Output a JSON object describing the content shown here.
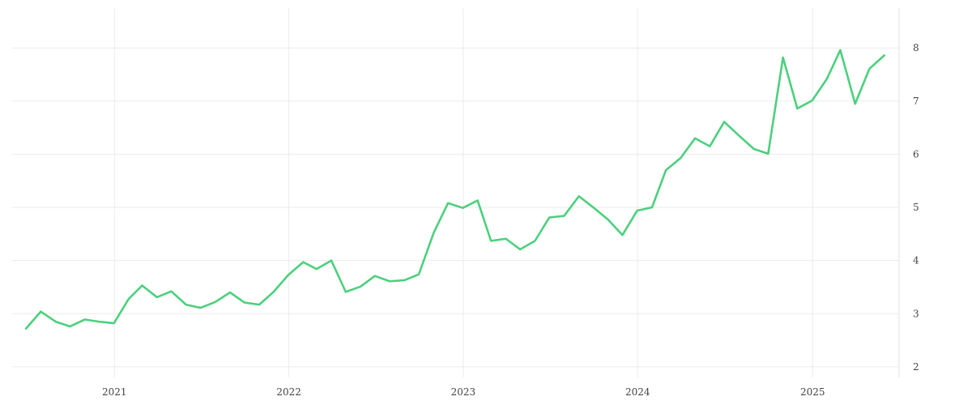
{
  "chart_data": {
    "type": "line",
    "title": "",
    "xlabel": "",
    "ylabel": "",
    "x_tick_labels": [
      "2021",
      "2022",
      "2023",
      "2024",
      "2025"
    ],
    "x_tick_dates": [
      "2021-01-01",
      "2022-01-01",
      "2023-01-01",
      "2024-01-01",
      "2025-01-01"
    ],
    "y_ticks": [
      2,
      3,
      4,
      5,
      6,
      7,
      8
    ],
    "y_tick_labels": [
      "2",
      "3",
      "4",
      "5",
      "6",
      "7",
      "8"
    ],
    "xlim": [
      "2020-06-01",
      "2025-07-01"
    ],
    "ylim": [
      1.8,
      8.75
    ],
    "y_axis_position": "right",
    "grid": true,
    "legend": "none",
    "series": [
      {
        "color": "#4cd07d",
        "points": [
          [
            "2020-06-30",
            2.72
          ],
          [
            "2020-07-31",
            3.04
          ],
          [
            "2020-08-31",
            2.85
          ],
          [
            "2020-09-30",
            2.76
          ],
          [
            "2020-10-31",
            2.89
          ],
          [
            "2020-11-30",
            2.85
          ],
          [
            "2020-12-31",
            2.82
          ],
          [
            "2021-01-31",
            3.28
          ],
          [
            "2021-02-28",
            3.53
          ],
          [
            "2021-03-31",
            3.31
          ],
          [
            "2021-04-30",
            3.42
          ],
          [
            "2021-05-31",
            3.17
          ],
          [
            "2021-06-30",
            3.11
          ],
          [
            "2021-07-31",
            3.22
          ],
          [
            "2021-08-31",
            3.4
          ],
          [
            "2021-09-30",
            3.21
          ],
          [
            "2021-10-31",
            3.17
          ],
          [
            "2021-11-30",
            3.41
          ],
          [
            "2021-12-31",
            3.73
          ],
          [
            "2022-01-31",
            3.97
          ],
          [
            "2022-02-28",
            3.84
          ],
          [
            "2022-03-31",
            4.0
          ],
          [
            "2022-04-30",
            3.41
          ],
          [
            "2022-05-31",
            3.51
          ],
          [
            "2022-06-30",
            3.71
          ],
          [
            "2022-07-31",
            3.61
          ],
          [
            "2022-08-31",
            3.63
          ],
          [
            "2022-09-30",
            3.74
          ],
          [
            "2022-10-31",
            4.52
          ],
          [
            "2022-11-30",
            5.08
          ],
          [
            "2022-12-31",
            4.99
          ],
          [
            "2023-01-31",
            5.13
          ],
          [
            "2023-02-28",
            4.37
          ],
          [
            "2023-03-31",
            4.41
          ],
          [
            "2023-04-30",
            4.21
          ],
          [
            "2023-05-31",
            4.37
          ],
          [
            "2023-06-30",
            4.81
          ],
          [
            "2023-07-31",
            4.84
          ],
          [
            "2023-08-31",
            5.21
          ],
          [
            "2023-09-30",
            5.0
          ],
          [
            "2023-10-31",
            4.77
          ],
          [
            "2023-11-30",
            4.48
          ],
          [
            "2023-12-31",
            4.94
          ],
          [
            "2024-01-31",
            5.0
          ],
          [
            "2024-02-29",
            5.7
          ],
          [
            "2024-03-31",
            5.93
          ],
          [
            "2024-04-30",
            6.3
          ],
          [
            "2024-05-31",
            6.15
          ],
          [
            "2024-06-30",
            6.61
          ],
          [
            "2024-07-31",
            6.35
          ],
          [
            "2024-08-31",
            6.1
          ],
          [
            "2024-09-30",
            6.01
          ],
          [
            "2024-10-31",
            7.82
          ],
          [
            "2024-11-30",
            6.86
          ],
          [
            "2024-12-31",
            7.01
          ],
          [
            "2025-01-31",
            7.42
          ],
          [
            "2025-02-28",
            7.96
          ],
          [
            "2025-03-31",
            6.95
          ],
          [
            "2025-04-30",
            7.61
          ],
          [
            "2025-05-31",
            7.86
          ]
        ]
      }
    ]
  }
}
